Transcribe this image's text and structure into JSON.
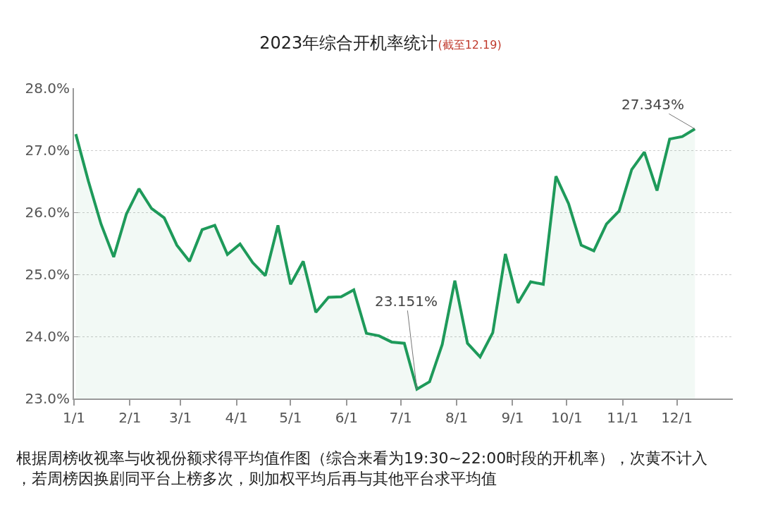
{
  "chart_data": {
    "type": "area",
    "title": "2023年综合开机率统计",
    "subtitle": "(截至12.19)",
    "x": [
      "2023-01-02",
      "2023-01-09",
      "2023-01-16",
      "2023-01-23",
      "2023-01-30",
      "2023-02-06",
      "2023-02-13",
      "2023-02-20",
      "2023-02-27",
      "2023-03-06",
      "2023-03-13",
      "2023-03-20",
      "2023-03-27",
      "2023-04-03",
      "2023-04-10",
      "2023-04-17",
      "2023-04-24",
      "2023-05-01",
      "2023-05-08",
      "2023-05-15",
      "2023-05-22",
      "2023-05-29",
      "2023-06-05",
      "2023-06-12",
      "2023-06-19",
      "2023-06-26",
      "2023-07-03",
      "2023-07-10",
      "2023-07-17",
      "2023-07-24",
      "2023-07-31",
      "2023-08-07",
      "2023-08-14",
      "2023-08-21",
      "2023-08-28",
      "2023-09-04",
      "2023-09-11",
      "2023-09-18",
      "2023-09-25",
      "2023-10-02",
      "2023-10-09",
      "2023-10-16",
      "2023-10-23",
      "2023-10-30",
      "2023-11-06",
      "2023-11-13",
      "2023-11-20",
      "2023-11-27",
      "2023-12-04",
      "2023-12-11"
    ],
    "series": [
      {
        "color": "#1e9a5a",
        "values": [
          27.26,
          26.5,
          25.81,
          25.28,
          25.97,
          26.38,
          26.06,
          25.91,
          25.47,
          25.21,
          25.72,
          25.79,
          25.32,
          25.49,
          25.19,
          24.98,
          25.79,
          24.84,
          25.21,
          24.39,
          24.63,
          24.64,
          24.75,
          24.05,
          24.01,
          23.91,
          23.89,
          23.151,
          23.27,
          23.87,
          24.9,
          23.89,
          23.67,
          24.06,
          25.33,
          24.54,
          24.88,
          24.84,
          26.58,
          26.14,
          25.47,
          25.38,
          25.81,
          26.02,
          26.69,
          26.97,
          26.35,
          27.18,
          27.22,
          27.343
        ]
      }
    ],
    "xlim": [
      "2023-01-01",
      "2024-01-01"
    ],
    "xticks": [
      {
        "value": "2023-01-01",
        "label": "1/1"
      },
      {
        "value": "2023-02-01",
        "label": "2/1"
      },
      {
        "value": "2023-03-01",
        "label": "3/1"
      },
      {
        "value": "2023-04-01",
        "label": "4/1"
      },
      {
        "value": "2023-05-01",
        "label": "5/1"
      },
      {
        "value": "2023-06-01",
        "label": "6/1"
      },
      {
        "value": "2023-07-01",
        "label": "7/1"
      },
      {
        "value": "2023-08-01",
        "label": "8/1"
      },
      {
        "value": "2023-09-01",
        "label": "9/1"
      },
      {
        "value": "2023-10-01",
        "label": "10/1"
      },
      {
        "value": "2023-11-01",
        "label": "11/1"
      },
      {
        "value": "2023-12-01",
        "label": "12/1"
      }
    ],
    "ylim": [
      23,
      28
    ],
    "yticks": [
      {
        "value": 23,
        "label": "23.0%"
      },
      {
        "value": 24,
        "label": "24.0%"
      },
      {
        "value": 25,
        "label": "25.0%"
      },
      {
        "value": 26,
        "label": "26.0%"
      },
      {
        "value": 27,
        "label": "27.0%"
      },
      {
        "value": 28,
        "label": "28.0%"
      }
    ],
    "grid": "y",
    "marker": "none",
    "line_style": "solid",
    "annotations": [
      {
        "text": "23.151%",
        "x": "2023-07-10",
        "y": 23.151
      },
      {
        "text": "27.343%",
        "x": "2023-12-11",
        "y": 27.343
      },
      "根据周榜收视率与收视份额求得平均值作图（综合来看为19:30~22:00时段的开机率），次黄不计入，若周榜因换剧同平台上榜多次，则加权平均后再与其他平台求平均值"
    ]
  }
}
